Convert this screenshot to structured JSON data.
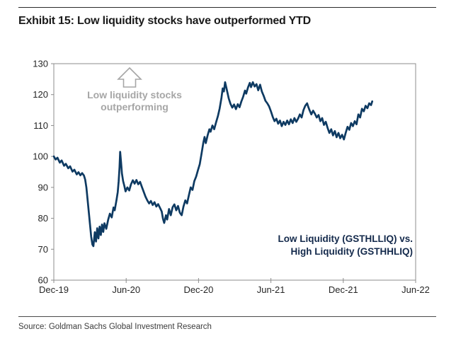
{
  "header": {
    "title": "Exhibit 15: Low liquidity stocks have outperformed YTD"
  },
  "footer": {
    "source": "Source: Goldman Sachs Global Investment Research"
  },
  "annotation": {
    "line1": "Low liquidity stocks",
    "line2": "outperforming",
    "icon": "up-arrow-icon",
    "color": "#a6a6a6"
  },
  "legend": {
    "line1": "Low Liquidity (GSTHLLIQ) vs.",
    "line2": "High Liquidity (GSTHHLIQ)",
    "color": "#13294b"
  },
  "colors": {
    "line": "#0e3a62",
    "axis": "#8c8c8c",
    "tick_text": "#262626"
  },
  "chart_data": {
    "type": "line",
    "title": "Low liquidity vs high liquidity relative performance (indexed to 100 at Dec-19)",
    "xlabel": "",
    "ylabel": "",
    "x_unit": "months since Dec-2019",
    "xlim": [
      0,
      30
    ],
    "ylim": [
      60,
      130
    ],
    "grid": false,
    "legend_position": "inside lower right",
    "x_ticks": [
      {
        "m": 0,
        "label": "Dec-19"
      },
      {
        "m": 6,
        "label": "Jun-20"
      },
      {
        "m": 12,
        "label": "Dec-20"
      },
      {
        "m": 18,
        "label": "Jun-21"
      },
      {
        "m": 24,
        "label": "Dec-21"
      },
      {
        "m": 30,
        "label": "Jun-22"
      }
    ],
    "y_ticks": [
      60,
      70,
      80,
      90,
      100,
      110,
      120,
      130
    ],
    "series": [
      {
        "name": "Low Liquidity (GSTHLLIQ) vs. High Liquidity (GSTHHLIQ)",
        "color": "#0e3a62",
        "points": [
          [
            0,
            100
          ],
          [
            0.15,
            99.0
          ],
          [
            0.3,
            99.6
          ],
          [
            0.5,
            98.0
          ],
          [
            0.65,
            98.7
          ],
          [
            0.85,
            97.0
          ],
          [
            1.0,
            97.6
          ],
          [
            1.2,
            96.2
          ],
          [
            1.35,
            96.8
          ],
          [
            1.55,
            95.1
          ],
          [
            1.7,
            95.7
          ],
          [
            1.9,
            94.2
          ],
          [
            2.05,
            94.9
          ],
          [
            2.2,
            93.9
          ],
          [
            2.35,
            94.6
          ],
          [
            2.5,
            93.8
          ],
          [
            2.6,
            92.5
          ],
          [
            2.7,
            90.0
          ],
          [
            2.8,
            86.0
          ],
          [
            2.9,
            82.0
          ],
          [
            3.0,
            78.0
          ],
          [
            3.1,
            74.0
          ],
          [
            3.2,
            71.5
          ],
          [
            3.28,
            71.0
          ],
          [
            3.4,
            75.5
          ],
          [
            3.5,
            72.5
          ],
          [
            3.6,
            76.8
          ],
          [
            3.7,
            73.5
          ],
          [
            3.8,
            77.3
          ],
          [
            3.9,
            74.6
          ],
          [
            4.0,
            78.0
          ],
          [
            4.1,
            75.6
          ],
          [
            4.2,
            78.4
          ],
          [
            4.35,
            76.6
          ],
          [
            4.5,
            79.5
          ],
          [
            4.65,
            81.5
          ],
          [
            4.8,
            80.3
          ],
          [
            4.95,
            83.5
          ],
          [
            5.05,
            82.6
          ],
          [
            5.2,
            86.0
          ],
          [
            5.3,
            88.5
          ],
          [
            5.38,
            92.0
          ],
          [
            5.45,
            96.5
          ],
          [
            5.5,
            101.5
          ],
          [
            5.58,
            98.0
          ],
          [
            5.65,
            94.5
          ],
          [
            5.75,
            92.0
          ],
          [
            5.85,
            90.5
          ],
          [
            5.95,
            88.7
          ],
          [
            6.1,
            90.0
          ],
          [
            6.25,
            89.0
          ],
          [
            6.4,
            91.0
          ],
          [
            6.55,
            92.3
          ],
          [
            6.7,
            91.2
          ],
          [
            6.85,
            92.4
          ],
          [
            7.0,
            91.0
          ],
          [
            7.15,
            91.8
          ],
          [
            7.3,
            90.2
          ],
          [
            7.45,
            88.6
          ],
          [
            7.6,
            87.0
          ],
          [
            7.75,
            85.8
          ],
          [
            7.9,
            84.8
          ],
          [
            8.05,
            85.6
          ],
          [
            8.2,
            84.3
          ],
          [
            8.35,
            85.2
          ],
          [
            8.5,
            83.8
          ],
          [
            8.65,
            84.6
          ],
          [
            8.8,
            83.4
          ],
          [
            8.95,
            82.2
          ],
          [
            9.05,
            79.8
          ],
          [
            9.15,
            78.5
          ],
          [
            9.3,
            81.0
          ],
          [
            9.4,
            79.6
          ],
          [
            9.55,
            83.0
          ],
          [
            9.7,
            81.0
          ],
          [
            9.85,
            83.6
          ],
          [
            10.0,
            84.5
          ],
          [
            10.15,
            82.6
          ],
          [
            10.3,
            84.0
          ],
          [
            10.45,
            81.8
          ],
          [
            10.6,
            81.0
          ],
          [
            10.75,
            83.8
          ],
          [
            10.9,
            85.8
          ],
          [
            11.05,
            84.8
          ],
          [
            11.2,
            87.5
          ],
          [
            11.35,
            90.0
          ],
          [
            11.5,
            89.2
          ],
          [
            11.65,
            92.0
          ],
          [
            11.8,
            93.5
          ],
          [
            11.95,
            95.5
          ],
          [
            12.1,
            97.5
          ],
          [
            12.25,
            101.0
          ],
          [
            12.4,
            104.5
          ],
          [
            12.5,
            106.3
          ],
          [
            12.6,
            104.3
          ],
          [
            12.75,
            106.8
          ],
          [
            12.9,
            108.8
          ],
          [
            13.0,
            108.0
          ],
          [
            13.15,
            110.0
          ],
          [
            13.3,
            108.8
          ],
          [
            13.45,
            111.0
          ],
          [
            13.6,
            113.0
          ],
          [
            13.75,
            115.5
          ],
          [
            13.9,
            119.0
          ],
          [
            14.0,
            122.0
          ],
          [
            14.1,
            121.0
          ],
          [
            14.2,
            124.0
          ],
          [
            14.35,
            121.5
          ],
          [
            14.5,
            118.8
          ],
          [
            14.65,
            117.0
          ],
          [
            14.8,
            115.8
          ],
          [
            14.95,
            116.8
          ],
          [
            15.1,
            115.3
          ],
          [
            15.25,
            116.9
          ],
          [
            15.4,
            115.9
          ],
          [
            15.55,
            117.8
          ],
          [
            15.7,
            119.3
          ],
          [
            15.85,
            121.3
          ],
          [
            15.95,
            120.3
          ],
          [
            16.1,
            122.3
          ],
          [
            16.25,
            123.8
          ],
          [
            16.35,
            122.4
          ],
          [
            16.5,
            124.0
          ],
          [
            16.65,
            122.6
          ],
          [
            16.8,
            123.4
          ],
          [
            16.95,
            121.4
          ],
          [
            17.1,
            123.2
          ],
          [
            17.25,
            121.0
          ],
          [
            17.4,
            119.6
          ],
          [
            17.55,
            118.0
          ],
          [
            17.7,
            117.2
          ],
          [
            17.85,
            116.2
          ],
          [
            18.0,
            114.6
          ],
          [
            18.15,
            112.8
          ],
          [
            18.3,
            111.4
          ],
          [
            18.45,
            112.2
          ],
          [
            18.6,
            110.6
          ],
          [
            18.75,
            111.6
          ],
          [
            18.9,
            109.8
          ],
          [
            19.05,
            111.2
          ],
          [
            19.2,
            110.2
          ],
          [
            19.35,
            111.6
          ],
          [
            19.5,
            110.4
          ],
          [
            19.65,
            112.0
          ],
          [
            19.8,
            110.8
          ],
          [
            19.95,
            112.4
          ],
          [
            20.1,
            111.2
          ],
          [
            20.25,
            112.2
          ],
          [
            20.4,
            113.6
          ],
          [
            20.55,
            112.6
          ],
          [
            20.7,
            115.0
          ],
          [
            20.85,
            116.4
          ],
          [
            21.0,
            117.2
          ],
          [
            21.1,
            116.0
          ],
          [
            21.2,
            115.0
          ],
          [
            21.35,
            113.6
          ],
          [
            21.5,
            114.8
          ],
          [
            21.65,
            113.8
          ],
          [
            21.8,
            112.6
          ],
          [
            21.95,
            113.4
          ],
          [
            22.1,
            111.4
          ],
          [
            22.25,
            112.4
          ],
          [
            22.4,
            110.2
          ],
          [
            22.55,
            111.2
          ],
          [
            22.7,
            109.2
          ],
          [
            22.85,
            107.6
          ],
          [
            23.0,
            108.8
          ],
          [
            23.15,
            106.8
          ],
          [
            23.3,
            108.2
          ],
          [
            23.45,
            106.2
          ],
          [
            23.6,
            107.6
          ],
          [
            23.75,
            105.9
          ],
          [
            23.9,
            107.0
          ],
          [
            24.05,
            105.5
          ],
          [
            24.2,
            107.6
          ],
          [
            24.35,
            109.6
          ],
          [
            24.5,
            108.6
          ],
          [
            24.65,
            110.8
          ],
          [
            24.8,
            109.8
          ],
          [
            24.95,
            111.4
          ],
          [
            25.1,
            110.4
          ],
          [
            25.25,
            113.6
          ],
          [
            25.4,
            112.6
          ],
          [
            25.55,
            115.4
          ],
          [
            25.7,
            114.6
          ],
          [
            25.85,
            116.4
          ],
          [
            26.0,
            115.6
          ],
          [
            26.15,
            117.2
          ],
          [
            26.3,
            116.6
          ],
          [
            26.4,
            117.8
          ]
        ]
      }
    ],
    "annotations": [
      {
        "text": "Low liquidity stocks outperforming",
        "style": "gray bold with hollow up-arrow",
        "position": "upper left"
      },
      {
        "text": "Low Liquidity (GSTHLLIQ) vs. High Liquidity (GSTHHLIQ)",
        "style": "navy bold",
        "position": "lower right"
      }
    ]
  }
}
